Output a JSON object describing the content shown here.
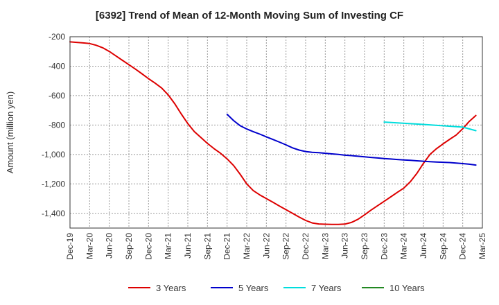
{
  "chart_data": {
    "type": "line",
    "title": "[6392]  Trend of Mean of 12-Month Moving Sum of Investing CF",
    "xlabel": "",
    "ylabel": "Amount (million yen)",
    "ylim": [
      -1500,
      -200
    ],
    "yticks": [
      -200,
      -400,
      -600,
      -800,
      -1000,
      -1200,
      -1400
    ],
    "ytick_labels": [
      "-200",
      "-400",
      "-600",
      "-800",
      "-1,000",
      "-1,200",
      "-1,400"
    ],
    "x_start": "Dec-19",
    "x_end": "Mar-25",
    "xtick_labels": [
      "Dec-19",
      "Mar-20",
      "Jun-20",
      "Sep-20",
      "Dec-20",
      "Mar-21",
      "Jun-21",
      "Sep-21",
      "Dec-21",
      "Mar-22",
      "Jun-22",
      "Sep-22",
      "Dec-22",
      "Mar-23",
      "Jun-23",
      "Sep-23",
      "Dec-23",
      "Mar-24",
      "Jun-24",
      "Sep-24",
      "Dec-24",
      "Mar-25"
    ],
    "grid": true,
    "legend_position": "bottom",
    "series": [
      {
        "name": "3 Years",
        "color": "#dd0000",
        "points": [
          [
            "Dec-19",
            -235
          ],
          [
            "Jan-20",
            -238
          ],
          [
            "Feb-20",
            -242
          ],
          [
            "Mar-20",
            -246
          ],
          [
            "Apr-20",
            -258
          ],
          [
            "May-20",
            -275
          ],
          [
            "Jun-20",
            -300
          ],
          [
            "Jul-20",
            -330
          ],
          [
            "Aug-20",
            -360
          ],
          [
            "Sep-20",
            -390
          ],
          [
            "Oct-20",
            -420
          ],
          [
            "Nov-20",
            -452
          ],
          [
            "Dec-20",
            -485
          ],
          [
            "Jan-21",
            -515
          ],
          [
            "Feb-21",
            -548
          ],
          [
            "Mar-21",
            -595
          ],
          [
            "Apr-21",
            -655
          ],
          [
            "May-21",
            -725
          ],
          [
            "Jun-21",
            -790
          ],
          [
            "Jul-21",
            -845
          ],
          [
            "Aug-21",
            -885
          ],
          [
            "Sep-21",
            -925
          ],
          [
            "Oct-21",
            -960
          ],
          [
            "Nov-21",
            -992
          ],
          [
            "Dec-21",
            -1030
          ],
          [
            "Jan-22",
            -1075
          ],
          [
            "Feb-22",
            -1135
          ],
          [
            "Mar-22",
            -1200
          ],
          [
            "Apr-22",
            -1245
          ],
          [
            "May-22",
            -1275
          ],
          [
            "Jun-22",
            -1300
          ],
          [
            "Jul-22",
            -1325
          ],
          [
            "Aug-22",
            -1350
          ],
          [
            "Sep-22",
            -1375
          ],
          [
            "Oct-22",
            -1400
          ],
          [
            "Nov-22",
            -1425
          ],
          [
            "Dec-22",
            -1448
          ],
          [
            "Jan-23",
            -1465
          ],
          [
            "Feb-23",
            -1472
          ],
          [
            "Mar-23",
            -1474
          ],
          [
            "Apr-23",
            -1475
          ],
          [
            "May-23",
            -1475
          ],
          [
            "Jun-23",
            -1473
          ],
          [
            "Jul-23",
            -1462
          ],
          [
            "Aug-23",
            -1440
          ],
          [
            "Sep-23",
            -1410
          ],
          [
            "Oct-23",
            -1378
          ],
          [
            "Nov-23",
            -1348
          ],
          [
            "Dec-23",
            -1318
          ],
          [
            "Jan-24",
            -1288
          ],
          [
            "Feb-24",
            -1258
          ],
          [
            "Mar-24",
            -1228
          ],
          [
            "Apr-24",
            -1185
          ],
          [
            "May-24",
            -1128
          ],
          [
            "Jun-24",
            -1060
          ],
          [
            "Jul-24",
            -1000
          ],
          [
            "Aug-24",
            -960
          ],
          [
            "Sep-24",
            -928
          ],
          [
            "Oct-24",
            -897
          ],
          [
            "Nov-24",
            -868
          ],
          [
            "Dec-24",
            -825
          ],
          [
            "Jan-25",
            -775
          ],
          [
            "Feb-25",
            -735
          ]
        ]
      },
      {
        "name": "5 Years",
        "color": "#0000cc",
        "points": [
          [
            "Dec-21",
            -727
          ],
          [
            "Jan-22",
            -770
          ],
          [
            "Feb-22",
            -805
          ],
          [
            "Mar-22",
            -827
          ],
          [
            "Apr-22",
            -845
          ],
          [
            "May-22",
            -862
          ],
          [
            "Jun-22",
            -880
          ],
          [
            "Jul-22",
            -898
          ],
          [
            "Aug-22",
            -916
          ],
          [
            "Sep-22",
            -935
          ],
          [
            "Oct-22",
            -955
          ],
          [
            "Nov-22",
            -970
          ],
          [
            "Dec-22",
            -980
          ],
          [
            "Jan-23",
            -985
          ],
          [
            "Feb-23",
            -988
          ],
          [
            "Mar-23",
            -992
          ],
          [
            "Apr-23",
            -996
          ],
          [
            "May-23",
            -1000
          ],
          [
            "Jun-23",
            -1005
          ],
          [
            "Jul-23",
            -1008
          ],
          [
            "Aug-23",
            -1012
          ],
          [
            "Sep-23",
            -1016
          ],
          [
            "Oct-23",
            -1020
          ],
          [
            "Nov-23",
            -1024
          ],
          [
            "Dec-23",
            -1028
          ],
          [
            "Jan-24",
            -1031
          ],
          [
            "Feb-24",
            -1034
          ],
          [
            "Mar-24",
            -1037
          ],
          [
            "Apr-24",
            -1040
          ],
          [
            "May-24",
            -1043
          ],
          [
            "Jun-24",
            -1046
          ],
          [
            "Jul-24",
            -1049
          ],
          [
            "Aug-24",
            -1051
          ],
          [
            "Sep-24",
            -1053
          ],
          [
            "Oct-24",
            -1055
          ],
          [
            "Nov-24",
            -1058
          ],
          [
            "Dec-24",
            -1062
          ],
          [
            "Jan-25",
            -1066
          ],
          [
            "Feb-25",
            -1072
          ]
        ]
      },
      {
        "name": "7 Years",
        "color": "#00dddd",
        "points": [
          [
            "Dec-23",
            -780
          ],
          [
            "Jun-24",
            -796
          ],
          [
            "Dec-24",
            -814
          ],
          [
            "Feb-25",
            -838
          ]
        ]
      },
      {
        "name": "10 Years",
        "color": "#228822",
        "points": []
      }
    ]
  }
}
